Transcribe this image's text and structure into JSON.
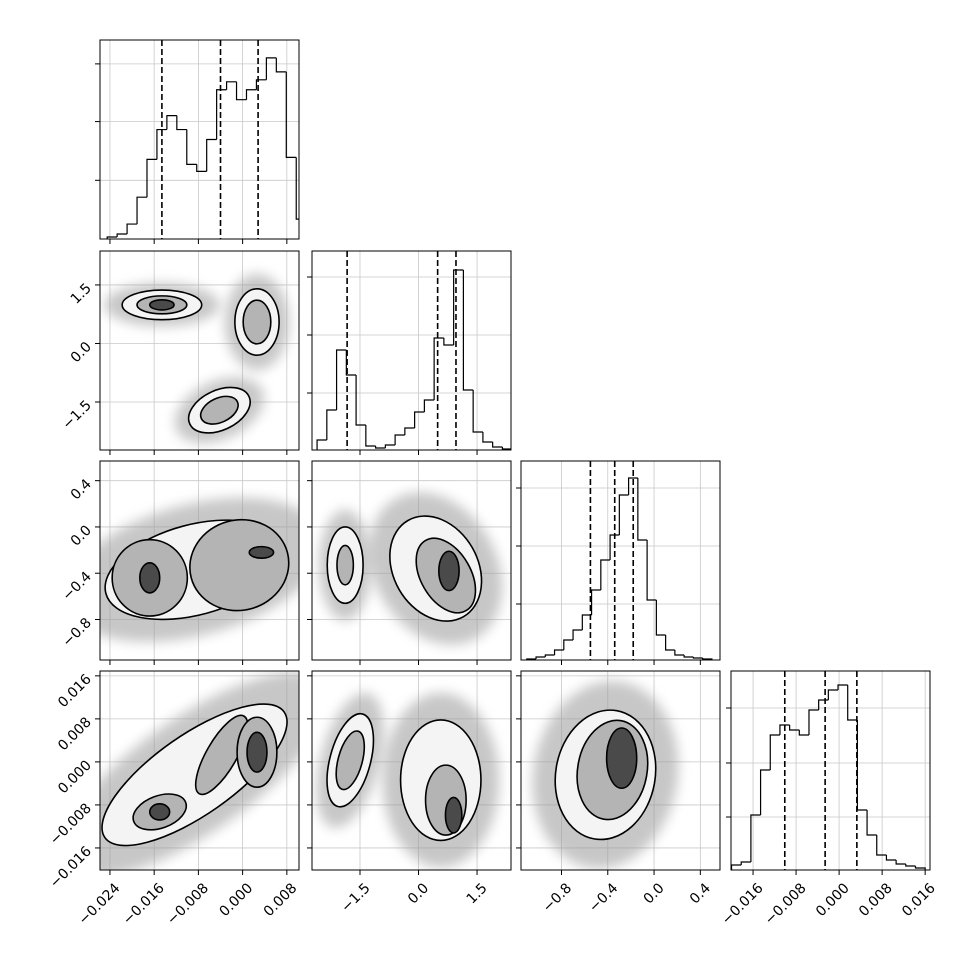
{
  "chart_data": {
    "type": "corner",
    "params": [
      {
        "lim": [
          -0.0258,
          0.0102
        ],
        "ticks": [
          {
            "value": -0.024,
            "label": "−0.024"
          },
          {
            "value": -0.016,
            "label": "−0.016"
          },
          {
            "value": -0.008,
            "label": "−0.008"
          },
          {
            "value": 0,
            "label": "0.000"
          },
          {
            "value": 0.008,
            "label": "0.008"
          }
        ]
      },
      {
        "lim": [
          -2.73,
          2.37
        ],
        "ticks": [
          {
            "value": -1.5,
            "label": "−1.5"
          },
          {
            "value": 0,
            "label": "0.0"
          },
          {
            "value": 1.5,
            "label": "1.5"
          }
        ]
      },
      {
        "lim": [
          -1.15,
          0.57
        ],
        "ticks": [
          {
            "value": -0.8,
            "label": "−0.8"
          },
          {
            "value": -0.4,
            "label": "−0.4"
          },
          {
            "value": 0,
            "label": "0.0"
          },
          {
            "value": 0.4,
            "label": "0.4"
          }
        ]
      },
      {
        "lim": [
          -0.0201,
          0.0169
        ],
        "ticks": [
          {
            "value": -0.016,
            "label": "−0.016"
          },
          {
            "value": -0.008,
            "label": "−0.008"
          },
          {
            "value": 0,
            "label": "0.000"
          },
          {
            "value": 0.008,
            "label": "0.008"
          },
          {
            "value": 0.016,
            "label": "0.016"
          }
        ]
      }
    ],
    "histograms": [
      {
        "bins": [
          -0.0245,
          -0.0227,
          -0.0209,
          -0.0191,
          -0.0173,
          -0.0155,
          -0.0137,
          -0.0119,
          -0.0101,
          -0.0083,
          -0.0065,
          -0.0047,
          -0.0029,
          -0.0011,
          0.0007,
          0.0025,
          0.0043,
          0.0061,
          0.0079,
          0.0097,
          0.0115
        ],
        "counts": [
          2,
          5,
          15,
          42,
          80,
          110,
          124,
          110,
          75,
          68,
          100,
          150,
          158,
          140,
          150,
          160,
          182,
          168,
          82,
          20
        ],
        "ylim": [
          0,
          200
        ],
        "yticks": [
          59,
          118,
          176
        ],
        "quantiles": [
          -0.0146,
          -0.004,
          0.0028
        ]
      },
      {
        "bins": [
          -2.6,
          -2.35,
          -2.1,
          -1.85,
          -1.6,
          -1.35,
          -1.1,
          -0.85,
          -0.6,
          -0.35,
          -0.1,
          0.15,
          0.4,
          0.65,
          0.9,
          1.15,
          1.4,
          1.65,
          1.9,
          2.15,
          2.4
        ],
        "counts": [
          10,
          40,
          100,
          75,
          25,
          4,
          2,
          5,
          15,
          22,
          38,
          50,
          112,
          105,
          180,
          60,
          18,
          8,
          3,
          1
        ],
        "ylim": [
          0,
          199
        ],
        "yticks": [
          57,
          115,
          173
        ],
        "quantiles": [
          -1.83,
          0.49,
          0.96
        ]
      },
      {
        "bins": [
          -1.1,
          -1.02,
          -0.94,
          -0.86,
          -0.78,
          -0.7,
          -0.62,
          -0.54,
          -0.46,
          -0.38,
          -0.3,
          -0.22,
          -0.14,
          -0.06,
          0.02,
          0.1,
          0.18,
          0.26,
          0.34,
          0.42,
          0.5
        ],
        "counts": [
          1,
          3,
          5,
          10,
          20,
          30,
          45,
          70,
          100,
          125,
          165,
          182,
          120,
          60,
          25,
          10,
          5,
          3,
          2,
          1
        ],
        "ylim": [
          0,
          199
        ],
        "yticks": [
          56,
          114,
          172
        ],
        "quantiles": [
          -0.55,
          -0.34,
          -0.18
        ]
      },
      {
        "bins": [
          -0.02,
          -0.0182,
          -0.0164,
          -0.0146,
          -0.0128,
          -0.011,
          -0.0092,
          -0.0074,
          -0.0056,
          -0.0038,
          -0.002,
          -0.0002,
          0.0016,
          0.0034,
          0.0052,
          0.007,
          0.0088,
          0.0106,
          0.0124,
          0.0142,
          0.016
        ],
        "counts": [
          5,
          8,
          55,
          100,
          135,
          145,
          140,
          135,
          160,
          170,
          180,
          185,
          150,
          60,
          35,
          15,
          10,
          6,
          4,
          2
        ],
        "ylim": [
          0,
          199
        ],
        "yticks": [
          53,
          107,
          162
        ],
        "quantiles": [
          -0.0101,
          -0.0026,
          0.0033
        ]
      }
    ],
    "panels": [
      {
        "x_param": 0,
        "y_param": 1,
        "contours": [
          {
            "cx": -0.0146,
            "cy": 0.99,
            "rx": 0.0072,
            "ry": 0.38,
            "angle": 0,
            "level": 1
          },
          {
            "cx": 0.0026,
            "cy": 0.55,
            "rx": 0.004,
            "ry": 0.85,
            "angle": 0,
            "level": 1
          },
          {
            "cx": -0.0042,
            "cy": -1.71,
            "rx": 0.0059,
            "ry": 0.51,
            "angle": -25,
            "level": 1
          },
          {
            "cx": -0.0146,
            "cy": 0.99,
            "rx": 0.0045,
            "ry": 0.23,
            "angle": 0,
            "level": 2
          },
          {
            "cx": 0.0026,
            "cy": 0.55,
            "rx": 0.0025,
            "ry": 0.56,
            "angle": 0,
            "level": 2
          },
          {
            "cx": -0.0042,
            "cy": -1.71,
            "rx": 0.0036,
            "ry": 0.31,
            "angle": -25,
            "level": 2
          },
          {
            "cx": -0.0146,
            "cy": 0.99,
            "rx": 0.0022,
            "ry": 0.13,
            "angle": 0,
            "level": 3
          }
        ]
      },
      {
        "x_param": 0,
        "y_param": 2,
        "contours": [
          {
            "cx": -0.0087,
            "cy": -0.37,
            "rx": 0.0166,
            "ry": 0.39,
            "angle": -15,
            "level": 1
          },
          {
            "cx": -0.0168,
            "cy": -0.44,
            "rx": 0.0068,
            "ry": 0.33,
            "angle": 0,
            "level": 2
          },
          {
            "cx": -0.0006,
            "cy": -0.33,
            "rx": 0.009,
            "ry": 0.39,
            "angle": -15,
            "level": 2
          },
          {
            "cx": -0.0168,
            "cy": -0.44,
            "rx": 0.0018,
            "ry": 0.13,
            "angle": 0,
            "level": 3
          },
          {
            "cx": 0.0034,
            "cy": -0.22,
            "rx": 0.0022,
            "ry": 0.05,
            "angle": 0,
            "level": 3
          }
        ]
      },
      {
        "x_param": 1,
        "y_param": 2,
        "contours": [
          {
            "cx": -1.88,
            "cy": -0.33,
            "rx": 0.46,
            "ry": 0.33,
            "angle": 0,
            "level": 1
          },
          {
            "cx": 0.44,
            "cy": -0.36,
            "rx": 1.08,
            "ry": 0.48,
            "angle": -30,
            "level": 1
          },
          {
            "cx": -1.88,
            "cy": -0.33,
            "rx": 0.21,
            "ry": 0.17,
            "angle": 0,
            "level": 2
          },
          {
            "cx": 0.7,
            "cy": -0.42,
            "rx": 0.64,
            "ry": 0.35,
            "angle": -30,
            "level": 2
          },
          {
            "cx": 0.78,
            "cy": -0.38,
            "rx": 0.26,
            "ry": 0.17,
            "angle": 0,
            "level": 3
          }
        ]
      },
      {
        "x_param": 0,
        "y_param": 3,
        "contours": [
          {
            "cx": -0.0087,
            "cy": -0.0024,
            "rx": 0.0198,
            "ry": 0.0074,
            "angle": -35,
            "level": 1
          },
          {
            "cx": -0.015,
            "cy": -0.0093,
            "rx": 0.005,
            "ry": 0.003,
            "angle": -20,
            "level": 2
          },
          {
            "cx": -0.0038,
            "cy": 0.0013,
            "rx": 0.0081,
            "ry": 0.0028,
            "angle": -60,
            "level": 2
          },
          {
            "cx": 0.0026,
            "cy": 0.0018,
            "rx": 0.0036,
            "ry": 0.0065,
            "angle": 0,
            "level": 2
          },
          {
            "cx": -0.015,
            "cy": -0.0093,
            "rx": 0.0018,
            "ry": 0.0015,
            "angle": 0,
            "level": 3
          },
          {
            "cx": 0.0026,
            "cy": 0.0018,
            "rx": 0.0018,
            "ry": 0.0037,
            "angle": 0,
            "level": 3
          }
        ]
      },
      {
        "x_param": 1,
        "y_param": 3,
        "contours": [
          {
            "cx": -1.75,
            "cy": 0.0003,
            "rx": 0.52,
            "ry": 0.0089,
            "angle": 15,
            "level": 1
          },
          {
            "cx": 0.57,
            "cy": -0.0034,
            "rx": 1.03,
            "ry": 0.0112,
            "angle": 0,
            "level": 1
          },
          {
            "cx": -1.75,
            "cy": 0.0003,
            "rx": 0.31,
            "ry": 0.0056,
            "angle": 15,
            "level": 2
          },
          {
            "cx": 0.7,
            "cy": -0.0071,
            "rx": 0.52,
            "ry": 0.0065,
            "angle": 0,
            "level": 2
          },
          {
            "cx": 0.9,
            "cy": -0.0099,
            "rx": 0.21,
            "ry": 0.0033,
            "angle": 0,
            "level": 3
          }
        ]
      },
      {
        "x_param": 2,
        "y_param": 3,
        "contours": [
          {
            "cx": -0.42,
            "cy": -0.0024,
            "rx": 0.43,
            "ry": 0.0121,
            "angle": 10,
            "level": 1
          },
          {
            "cx": -0.36,
            "cy": -0.0015,
            "rx": 0.3,
            "ry": 0.0093,
            "angle": 10,
            "level": 2
          },
          {
            "cx": -0.28,
            "cy": 0.0007,
            "rx": 0.13,
            "ry": 0.0056,
            "angle": 0,
            "level": 3
          }
        ]
      }
    ]
  }
}
